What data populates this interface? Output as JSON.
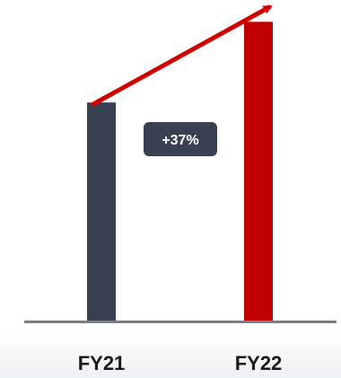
{
  "chart_data": {
    "type": "bar",
    "categories": [
      "FY21",
      "FY22"
    ],
    "values": [
      100,
      137
    ],
    "ylim": [
      0,
      147
    ],
    "grid": false,
    "legend": "none",
    "annotation": "+37%",
    "bar_colors": [
      "#384152",
      "#c10000"
    ],
    "arrow_color": "#d40000",
    "axis_color": "#7a7f8a",
    "badge_color": "#384152"
  }
}
